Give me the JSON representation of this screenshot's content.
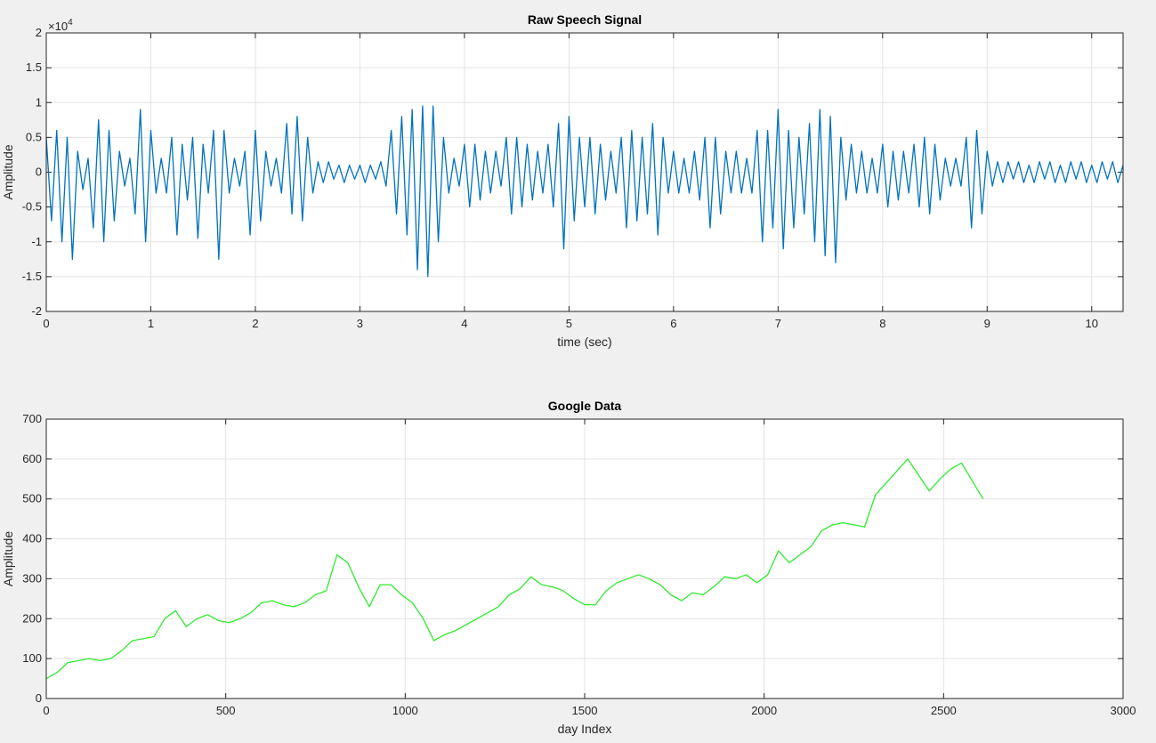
{
  "chart_data": [
    {
      "type": "line",
      "title": "Raw Speech Signal",
      "x_label": "time (sec)",
      "y_label": "Amplitude",
      "y_multiplier": "×10",
      "y_exponent": "4",
      "xlim": [
        0,
        10.3
      ],
      "ylim": [
        -2,
        2
      ],
      "xticks": [
        0,
        1,
        2,
        3,
        4,
        5,
        6,
        7,
        8,
        9,
        10
      ],
      "yticks": [
        -2,
        -1.5,
        -1,
        -0.5,
        0,
        0.5,
        1,
        1.5,
        2
      ],
      "grid": true,
      "x": [
        0,
        0.05,
        0.1,
        0.15,
        0.2,
        0.25,
        0.3,
        0.35,
        0.4,
        0.45,
        0.5,
        0.55,
        0.6,
        0.65,
        0.7,
        0.75,
        0.8,
        0.85,
        0.9,
        0.95,
        1,
        1.05,
        1.1,
        1.15,
        1.2,
        1.25,
        1.3,
        1.35,
        1.4,
        1.45,
        1.5,
        1.55,
        1.6,
        1.65,
        1.7,
        1.75,
        1.8,
        1.85,
        1.9,
        1.95,
        2,
        2.05,
        2.1,
        2.15,
        2.2,
        2.25,
        2.3,
        2.35,
        2.4,
        2.45,
        2.5,
        2.55,
        2.6,
        2.65,
        2.7,
        2.75,
        2.8,
        2.85,
        2.9,
        2.95,
        3,
        3.05,
        3.1,
        3.15,
        3.2,
        3.25,
        3.3,
        3.35,
        3.4,
        3.45,
        3.5,
        3.55,
        3.6,
        3.65,
        3.7,
        3.75,
        3.8,
        3.85,
        3.9,
        3.95,
        4,
        4.05,
        4.1,
        4.15,
        4.2,
        4.25,
        4.3,
        4.35,
        4.4,
        4.45,
        4.5,
        4.55,
        4.6,
        4.65,
        4.7,
        4.75,
        4.8,
        4.85,
        4.9,
        4.95,
        5,
        5.05,
        5.1,
        5.15,
        5.2,
        5.25,
        5.3,
        5.35,
        5.4,
        5.45,
        5.5,
        5.55,
        5.6,
        5.65,
        5.7,
        5.75,
        5.8,
        5.85,
        5.9,
        5.95,
        6,
        6.05,
        6.1,
        6.15,
        6.2,
        6.25,
        6.3,
        6.35,
        6.4,
        6.45,
        6.5,
        6.55,
        6.6,
        6.65,
        6.7,
        6.75,
        6.8,
        6.85,
        6.9,
        6.95,
        7,
        7.05,
        7.1,
        7.15,
        7.2,
        7.25,
        7.3,
        7.35,
        7.4,
        7.45,
        7.5,
        7.55,
        7.6,
        7.65,
        7.7,
        7.75,
        7.8,
        7.85,
        7.9,
        7.95,
        8,
        8.05,
        8.1,
        8.15,
        8.2,
        8.25,
        8.3,
        8.35,
        8.4,
        8.45,
        8.5,
        8.55,
        8.6,
        8.65,
        8.7,
        8.75,
        8.8,
        8.85,
        8.9,
        8.95,
        9,
        9.05,
        9.1,
        9.15,
        9.2,
        9.25,
        9.3,
        9.35,
        9.4,
        9.45,
        9.5,
        9.55,
        9.6,
        9.65,
        9.7,
        9.75,
        9.8,
        9.85,
        9.9,
        9.95,
        10,
        10.05,
        10.1,
        10.15,
        10.2,
        10.25,
        10.3
      ],
      "series": [
        {
          "color": "#0072bd",
          "values": [
            0.5,
            -0.7,
            0.6,
            -1.0,
            0.5,
            -1.25,
            0.3,
            -0.25,
            0.2,
            -0.8,
            0.75,
            -1.0,
            0.6,
            -0.7,
            0.3,
            -0.2,
            0.2,
            -0.6,
            0.9,
            -1.0,
            0.6,
            -0.3,
            0.2,
            -0.3,
            0.5,
            -0.9,
            0.4,
            -0.4,
            0.5,
            -0.95,
            0.4,
            -0.3,
            0.6,
            -1.25,
            0.6,
            -0.3,
            0.2,
            -0.2,
            0.3,
            -0.9,
            0.6,
            -0.7,
            0.3,
            -0.2,
            0.2,
            -0.3,
            0.7,
            -0.6,
            0.8,
            -0.7,
            0.5,
            -0.3,
            0.15,
            -0.15,
            0.15,
            -0.1,
            0.1,
            -0.15,
            0.1,
            -0.1,
            0.1,
            -0.15,
            0.1,
            -0.1,
            0.15,
            -0.2,
            0.6,
            -0.6,
            0.8,
            -0.9,
            0.9,
            -1.4,
            0.95,
            -1.5,
            0.95,
            -1.0,
            0.5,
            -0.3,
            0.2,
            -0.2,
            0.4,
            -0.5,
            0.4,
            -0.4,
            0.3,
            -0.3,
            0.3,
            -0.2,
            0.5,
            -0.6,
            0.5,
            -0.5,
            0.4,
            -0.4,
            0.3,
            -0.3,
            0.4,
            -0.5,
            0.7,
            -1.1,
            0.8,
            -0.7,
            0.5,
            -0.5,
            0.5,
            -0.6,
            0.4,
            -0.4,
            0.3,
            -0.3,
            0.5,
            -0.8,
            0.6,
            -0.7,
            0.5,
            -0.6,
            0.7,
            -0.9,
            0.5,
            -0.3,
            0.3,
            -0.3,
            0.2,
            -0.3,
            0.3,
            -0.4,
            0.5,
            -0.8,
            0.5,
            -0.6,
            0.3,
            -0.3,
            0.3,
            -0.3,
            0.2,
            -0.3,
            0.6,
            -1.0,
            0.6,
            -0.8,
            0.9,
            -1.1,
            0.6,
            -0.8,
            0.5,
            -0.6,
            0.7,
            -1.0,
            0.9,
            -1.2,
            0.8,
            -1.3,
            0.5,
            -0.4,
            0.4,
            -0.3,
            0.3,
            -0.3,
            0.2,
            -0.3,
            0.4,
            -0.5,
            0.3,
            -0.4,
            0.3,
            -0.3,
            0.4,
            -0.5,
            0.5,
            -0.6,
            0.4,
            -0.4,
            0.2,
            -0.2,
            0.2,
            -0.2,
            0.5,
            -0.8,
            0.6,
            -0.6,
            0.3,
            -0.2,
            0.15,
            -0.15,
            0.15,
            -0.1,
            0.15,
            -0.15,
            0.1,
            -0.15,
            0.15,
            -0.1,
            0.15,
            -0.15,
            0.1,
            -0.15,
            0.15,
            -0.1,
            0.15,
            -0.15,
            0.1,
            -0.15,
            0.15,
            -0.1,
            0.15,
            -0.15,
            0.1
          ]
        }
      ]
    },
    {
      "type": "line",
      "title": "Google Data",
      "x_label": "day Index",
      "y_label": "Amplitude",
      "xlim": [
        0,
        3000
      ],
      "ylim": [
        0,
        700
      ],
      "xticks": [
        0,
        500,
        1000,
        1500,
        2000,
        2500,
        3000
      ],
      "yticks": [
        0,
        100,
        200,
        300,
        400,
        500,
        600,
        700
      ],
      "grid": true,
      "x": [
        0,
        30,
        60,
        90,
        120,
        150,
        180,
        210,
        240,
        270,
        300,
        330,
        360,
        390,
        420,
        450,
        480,
        510,
        540,
        570,
        600,
        630,
        660,
        690,
        720,
        750,
        780,
        810,
        840,
        870,
        900,
        930,
        960,
        990,
        1020,
        1050,
        1080,
        1110,
        1140,
        1170,
        1200,
        1230,
        1260,
        1290,
        1320,
        1350,
        1380,
        1410,
        1440,
        1470,
        1500,
        1530,
        1560,
        1590,
        1620,
        1650,
        1680,
        1710,
        1740,
        1770,
        1800,
        1830,
        1860,
        1890,
        1920,
        1950,
        1980,
        2010,
        2040,
        2070,
        2100,
        2130,
        2160,
        2190,
        2220,
        2250,
        2280,
        2310,
        2340,
        2370,
        2400,
        2430,
        2460,
        2490,
        2520,
        2550,
        2580,
        2610
      ],
      "series": [
        {
          "color": "#2eea2e",
          "values": [
            50,
            65,
            90,
            95,
            100,
            95,
            100,
            120,
            145,
            150,
            155,
            200,
            220,
            180,
            200,
            210,
            195,
            190,
            200,
            215,
            240,
            245,
            235,
            230,
            240,
            260,
            270,
            360,
            340,
            280,
            230,
            285,
            285,
            260,
            240,
            200,
            145,
            160,
            170,
            185,
            200,
            215,
            230,
            260,
            275,
            305,
            285,
            280,
            270,
            250,
            235,
            235,
            270,
            290,
            300,
            310,
            300,
            285,
            260,
            245,
            265,
            260,
            280,
            305,
            300,
            310,
            290,
            310,
            370,
            340,
            360,
            380,
            420,
            435,
            440,
            435,
            430,
            510,
            540,
            570,
            600,
            560,
            520,
            550,
            575,
            590,
            545,
            500
          ]
        }
      ]
    }
  ]
}
